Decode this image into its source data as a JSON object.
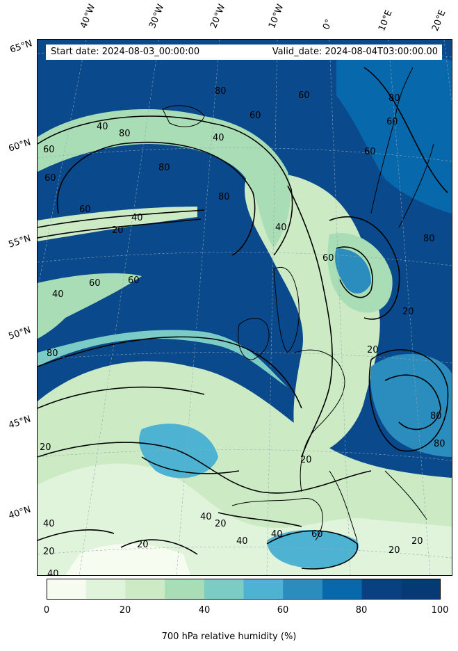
{
  "info": {
    "start_date": "Start date: 2024-08-03_00:00:00",
    "valid_date": "Valid_date: 2024-08-04T03:00:00.00"
  },
  "longitude_labels": [
    "40°W",
    "30°W",
    "20°W",
    "10°W",
    "0°",
    "10°E",
    "20°E"
  ],
  "latitude_labels": [
    "65°N",
    "60°N",
    "55°N",
    "50°N",
    "45°N",
    "40°N"
  ],
  "contour_labels": [
    "80",
    "60",
    "40",
    "80",
    "60",
    "40",
    "80",
    "60",
    "20",
    "40",
    "60",
    "60",
    "40",
    "80",
    "60",
    "80",
    "60",
    "40",
    "60",
    "20",
    "20",
    "80",
    "80",
    "20",
    "20",
    "40",
    "20",
    "40",
    "20",
    "40",
    "60",
    "20",
    "20",
    "40",
    "20",
    "40",
    "60",
    "80",
    "80",
    "60"
  ],
  "colorbar": {
    "label": "700 hPa relative humidity (%)",
    "ticks": [
      "0",
      "20",
      "40",
      "60",
      "80",
      "100"
    ],
    "colors": [
      "#f7fcf0",
      "#e0f3db",
      "#ccebc5",
      "#a8ddb5",
      "#7bccc4",
      "#4eb3d3",
      "#2b8cbe",
      "#0868ac",
      "#084081",
      "#063a75"
    ]
  }
}
